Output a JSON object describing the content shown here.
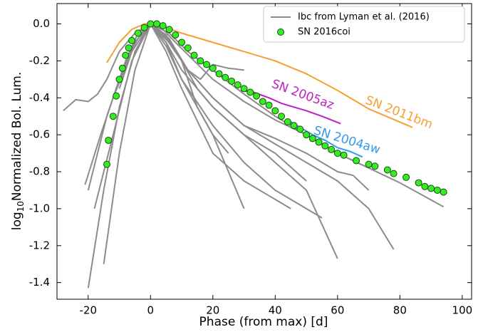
{
  "chart_data": {
    "type": "line",
    "xlabel": "Phase (from max) [d]",
    "ylabel": {
      "base": "log",
      "subscript": "10",
      "text": "Normalized Bol. Lum."
    },
    "xlim": [
      -30,
      103
    ],
    "ylim": [
      -1.49,
      0.11
    ],
    "xticks": [
      -20,
      0,
      20,
      40,
      60,
      80,
      100
    ],
    "yticks": [
      {
        "value": 0,
        "label": "0.0"
      },
      {
        "value": -0.2,
        "label": "-0.2"
      },
      {
        "value": -0.4,
        "label": "-0.4"
      },
      {
        "value": -0.6,
        "label": "-0.6"
      },
      {
        "value": -0.8,
        "label": "-0.8"
      },
      {
        "value": -1.0,
        "label": "-1.0"
      },
      {
        "value": -1.2,
        "label": "-1.2"
      },
      {
        "value": -1.4,
        "label": "-1.4"
      }
    ],
    "legend": "upper right",
    "reference_curves": {
      "name": "Ibc from Lyman et al. (2016)",
      "color": "#8c8c8c",
      "lines": [
        {
          "x": [
            -28,
            -24,
            -20,
            -17,
            -14,
            -10,
            -5,
            0,
            5,
            10,
            15,
            20,
            25
          ],
          "values": [
            -0.47,
            -0.41,
            -0.42,
            -0.38,
            -0.3,
            -0.15,
            -0.05,
            0,
            -0.06,
            -0.2,
            -0.45,
            -0.6,
            -0.7
          ]
        },
        {
          "x": [
            -20,
            -15,
            -10,
            -5,
            0,
            5,
            10,
            20,
            30,
            40,
            50,
            60
          ],
          "values": [
            -1.43,
            -0.9,
            -0.45,
            -0.15,
            0,
            -0.1,
            -0.25,
            -0.45,
            -0.6,
            -0.75,
            -0.9,
            -1.27
          ]
        },
        {
          "x": [
            -18,
            -12,
            -6,
            0,
            6,
            12,
            20,
            30,
            40,
            50,
            60,
            70,
            78
          ],
          "values": [
            -1.0,
            -0.6,
            -0.2,
            0,
            -0.1,
            -0.25,
            -0.4,
            -0.55,
            -0.65,
            -0.75,
            -0.85,
            -1.0,
            -1.22
          ]
        },
        {
          "x": [
            -15,
            -10,
            -5,
            0,
            5,
            10,
            20,
            30
          ],
          "values": [
            -1.3,
            -0.7,
            -0.25,
            0,
            -0.12,
            -0.3,
            -0.6,
            -1.0
          ]
        },
        {
          "x": [
            -12,
            -6,
            0,
            6,
            12,
            20,
            30,
            40,
            50,
            60,
            70
          ],
          "values": [
            -0.4,
            -0.15,
            0,
            -0.05,
            -0.15,
            -0.25,
            -0.38,
            -0.5,
            -0.6,
            -0.7,
            -0.78
          ]
        },
        {
          "x": [
            -10,
            -5,
            0,
            5,
            10,
            15,
            20,
            30,
            40,
            50
          ],
          "values": [
            -0.35,
            -0.1,
            0,
            -0.08,
            -0.2,
            -0.35,
            -0.45,
            -0.6,
            -0.7,
            -0.85
          ]
        },
        {
          "x": [
            -8,
            -4,
            0,
            4,
            8,
            14,
            20,
            30,
            40,
            50,
            60,
            70,
            80,
            94
          ],
          "values": [
            -0.2,
            -0.05,
            0,
            -0.03,
            -0.1,
            -0.2,
            -0.3,
            -0.42,
            -0.52,
            -0.6,
            -0.7,
            -0.78,
            -0.86,
            -0.99
          ]
        },
        {
          "x": [
            -21,
            -16,
            -10,
            -5,
            0,
            5,
            10,
            20,
            30,
            40,
            50,
            55
          ],
          "values": [
            -0.87,
            -0.6,
            -0.3,
            -0.1,
            0,
            -0.1,
            -0.3,
            -0.55,
            -0.75,
            -0.9,
            -1.0,
            -1.05
          ]
        },
        {
          "x": [
            -20,
            -14,
            -8,
            -3,
            0,
            4,
            8,
            12,
            16,
            20,
            25,
            30
          ],
          "values": [
            -0.9,
            -0.5,
            -0.2,
            -0.05,
            0,
            -0.05,
            -0.15,
            -0.25,
            -0.3,
            -0.22,
            -0.24,
            -0.25
          ]
        },
        {
          "x": [
            -6,
            0,
            6,
            12,
            20,
            30,
            40,
            50,
            60,
            65,
            70
          ],
          "values": [
            -0.12,
            0,
            -0.08,
            -0.25,
            -0.4,
            -0.55,
            -0.62,
            -0.7,
            -0.8,
            -0.82,
            -0.9
          ]
        },
        {
          "x": [
            -5,
            0,
            5,
            10,
            20,
            30,
            40,
            45
          ],
          "values": [
            -0.1,
            0,
            -0.15,
            -0.35,
            -0.7,
            -0.85,
            -0.95,
            -1.0
          ]
        }
      ]
    },
    "annotated_curves": [
      {
        "name": "SN 2011bm",
        "color": "#f5a030",
        "x": [
          -14,
          -10,
          -6,
          -2,
          0,
          5,
          10,
          20,
          30,
          40,
          50,
          60,
          70,
          84
        ],
        "values": [
          -0.21,
          -0.1,
          -0.03,
          0,
          0,
          -0.02,
          -0.05,
          -0.1,
          -0.15,
          -0.2,
          -0.27,
          -0.36,
          -0.46,
          -0.56
        ]
      },
      {
        "name": "SN 2005az",
        "color": "#c020c0",
        "x": [
          29,
          33,
          38,
          42,
          46,
          50,
          55,
          61
        ],
        "values": [
          -0.36,
          -0.37,
          -0.4,
          -0.43,
          -0.45,
          -0.47,
          -0.5,
          -0.54
        ]
      },
      {
        "name": "SN 2004aw",
        "color": "#3399ee",
        "x": [
          44,
          48,
          52,
          56,
          60,
          64,
          68
        ],
        "values": [
          -0.52,
          -0.56,
          -0.6,
          -0.63,
          -0.67,
          -0.69,
          -0.72
        ]
      }
    ],
    "scatter": {
      "name": "SN 2016coi",
      "color": "#33ee22",
      "x": [
        -14,
        -13.5,
        -12,
        -11,
        -10,
        -9,
        -8,
        -7,
        -6,
        -4,
        -2,
        0,
        2,
        4,
        6,
        8,
        10,
        12,
        14,
        16,
        18,
        20,
        22,
        24,
        26,
        28,
        30,
        32,
        34,
        36,
        38,
        40,
        42,
        44,
        46,
        48,
        50,
        52,
        54,
        56,
        58,
        60,
        62,
        66,
        70,
        72,
        76,
        78,
        82,
        86,
        88,
        90,
        92,
        94
      ],
      "values": [
        -0.76,
        -0.63,
        -0.5,
        -0.39,
        -0.3,
        -0.24,
        -0.17,
        -0.13,
        -0.09,
        -0.05,
        -0.02,
        0,
        0,
        -0.01,
        -0.03,
        -0.06,
        -0.1,
        -0.13,
        -0.17,
        -0.2,
        -0.22,
        -0.24,
        -0.27,
        -0.29,
        -0.31,
        -0.33,
        -0.35,
        -0.37,
        -0.39,
        -0.42,
        -0.44,
        -0.47,
        -0.5,
        -0.53,
        -0.55,
        -0.57,
        -0.6,
        -0.62,
        -0.64,
        -0.66,
        -0.68,
        -0.7,
        -0.71,
        -0.74,
        -0.76,
        -0.77,
        -0.79,
        -0.81,
        -0.83,
        -0.86,
        -0.88,
        -0.89,
        -0.9,
        -0.91
      ]
    }
  }
}
